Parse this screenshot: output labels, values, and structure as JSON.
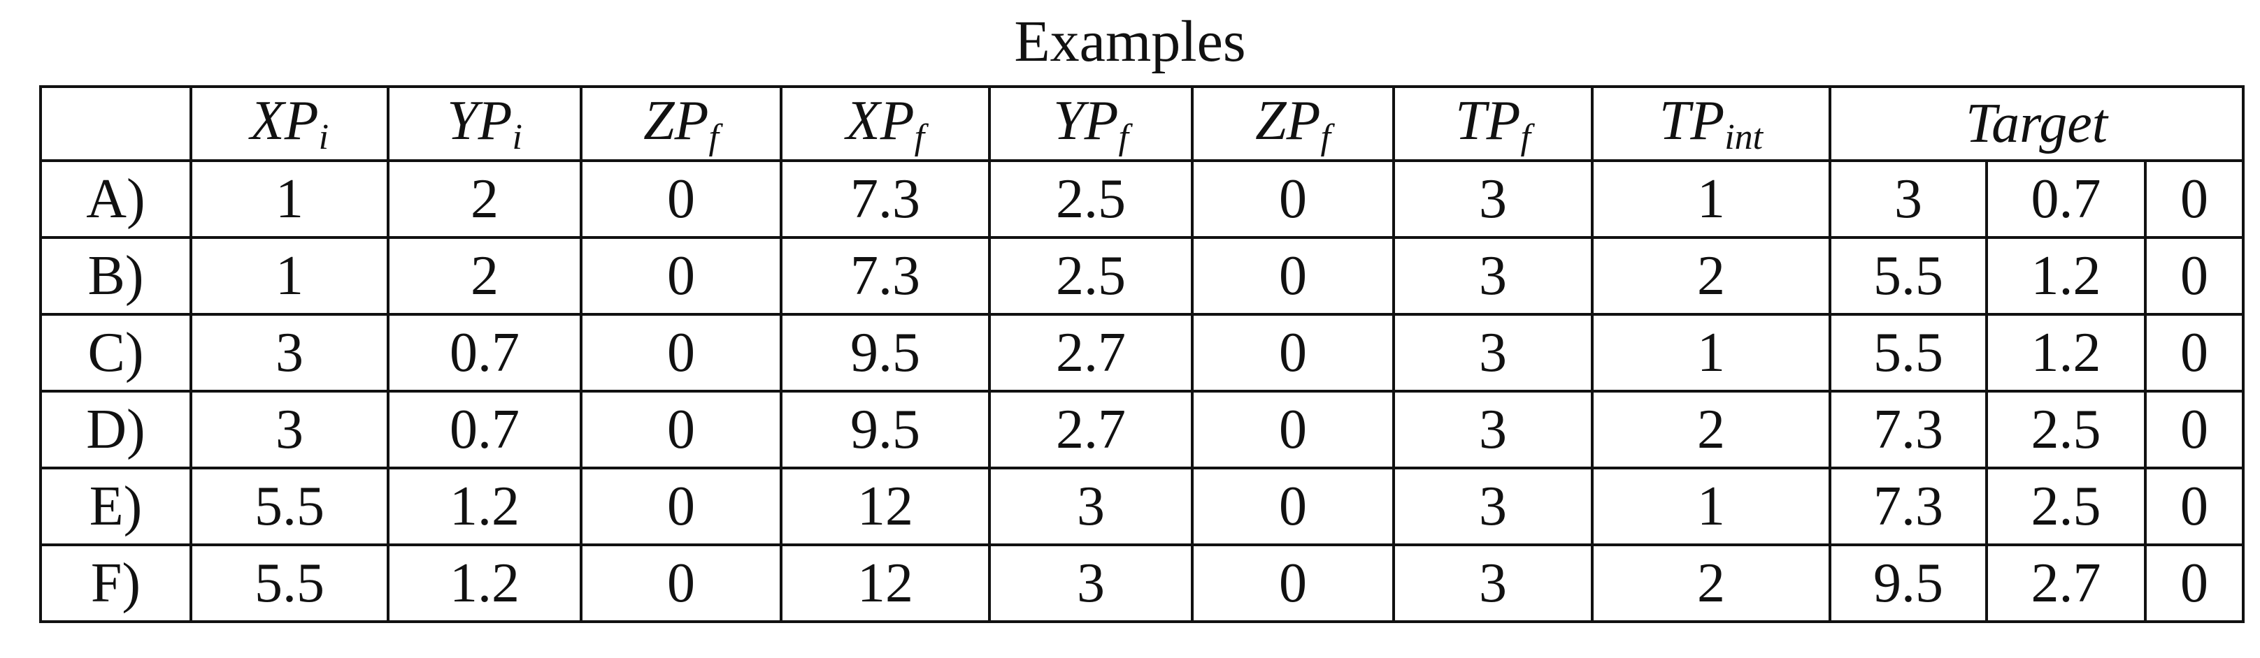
{
  "title": "Examples",
  "columns": [
    {
      "name": "XP",
      "sub": "i"
    },
    {
      "name": "YP",
      "sub": "i"
    },
    {
      "name": "ZP",
      "sub": "f"
    },
    {
      "name": "XP",
      "sub": "f"
    },
    {
      "name": "YP",
      "sub": "f"
    },
    {
      "name": "ZP",
      "sub": "f"
    },
    {
      "name": "TP",
      "sub": "f"
    },
    {
      "name": "TP",
      "sub": "int"
    }
  ],
  "target": "Target",
  "rows": [
    {
      "label": "A)",
      "values": [
        1,
        2,
        0,
        7.3,
        2.5,
        0,
        3,
        1,
        3,
        0.7,
        0
      ]
    },
    {
      "label": "B)",
      "values": [
        1,
        2,
        0,
        7.3,
        2.5,
        0,
        3,
        2,
        5.5,
        1.2,
        0
      ]
    },
    {
      "label": "C)",
      "values": [
        3,
        0.7,
        0,
        9.5,
        2.7,
        0,
        3,
        1,
        5.5,
        1.2,
        0
      ]
    },
    {
      "label": "D)",
      "values": [
        3,
        0.7,
        0,
        9.5,
        2.7,
        0,
        3,
        2,
        7.3,
        2.5,
        0
      ]
    },
    {
      "label": "E)",
      "values": [
        5.5,
        1.2,
        0,
        12,
        3,
        0,
        3,
        1,
        7.3,
        2.5,
        0
      ]
    },
    {
      "label": "F)",
      "values": [
        5.5,
        1.2,
        0,
        12,
        3,
        0,
        3,
        2,
        9.5,
        2.7,
        0
      ]
    }
  ]
}
